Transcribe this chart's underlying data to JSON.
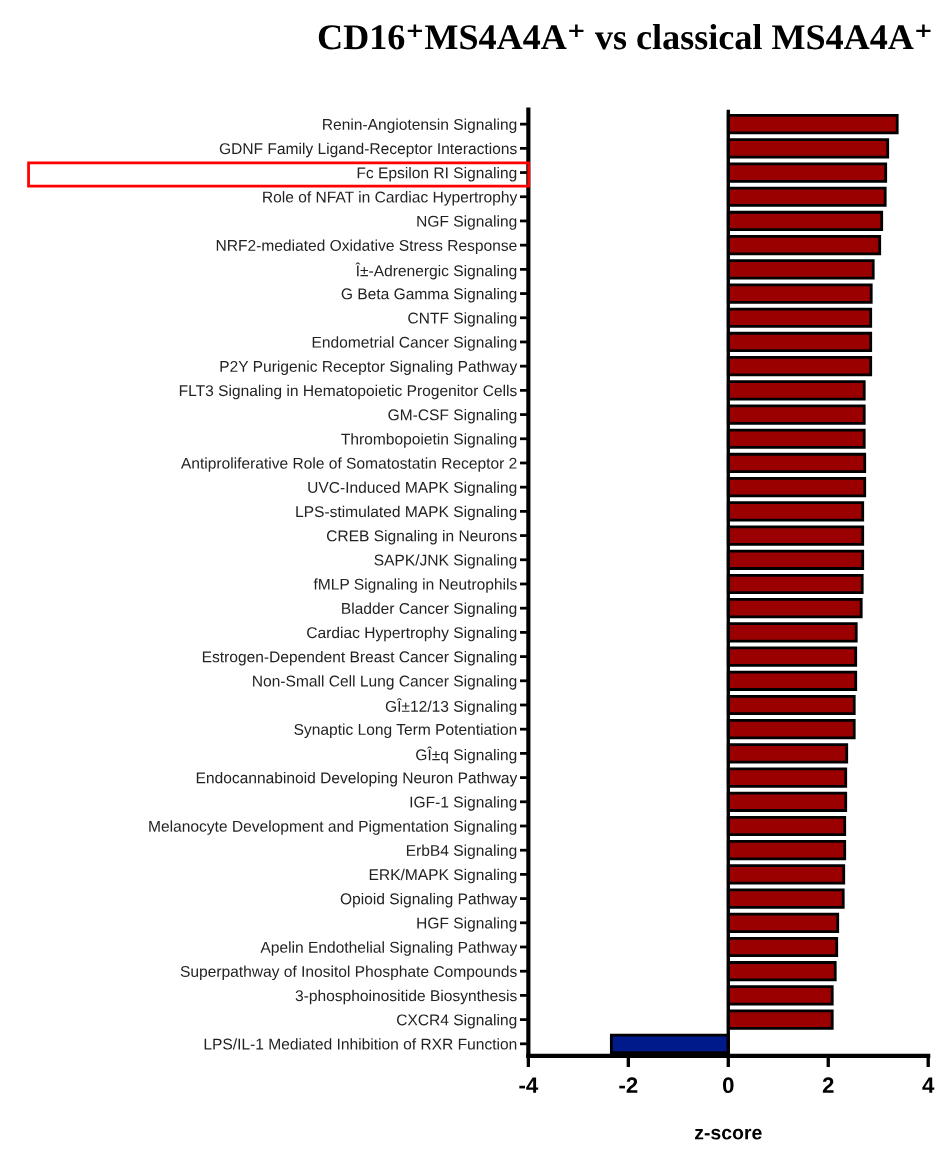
{
  "chart_data": {
    "type": "bar",
    "orientation": "horizontal",
    "title": "CD16⁺MS4A4A⁺ vs classical MS4A4A⁺",
    "xlabel": "z-score",
    "categories": [
      "Renin-Angiotensin Signaling",
      "GDNF Family Ligand-Receptor Interactions",
      "Fc Epsilon RI Signaling",
      "Role of NFAT in Cardiac Hypertrophy",
      "NGF Signaling",
      "NRF2-mediated Oxidative Stress Response",
      "Î±-Adrenergic Signaling",
      "G Beta Gamma Signaling",
      "CNTF Signaling",
      "Endometrial Cancer Signaling",
      "P2Y Purigenic Receptor Signaling Pathway",
      "FLT3 Signaling in Hematopoietic Progenitor Cells",
      "GM-CSF Signaling",
      "Thrombopoietin Signaling",
      "Antiproliferative Role of Somatostatin Receptor 2",
      "UVC-Induced MAPK Signaling",
      "LPS-stimulated MAPK Signaling",
      "CREB Signaling in Neurons",
      "SAPK/JNK Signaling",
      "fMLP Signaling in Neutrophils",
      "Bladder Cancer Signaling",
      "Cardiac Hypertrophy Signaling",
      "Estrogen-Dependent Breast Cancer Signaling",
      "Non-Small Cell Lung Cancer Signaling",
      "GÎ±12/13 Signaling",
      "Synaptic Long Term Potentiation",
      "GÎ±q Signaling",
      "Endocannabinoid Developing Neuron Pathway",
      "IGF-1 Signaling",
      "Melanocyte Development and Pigmentation Signaling",
      "ErbB4 Signaling",
      "ERK/MAPK Signaling",
      "Opioid Signaling Pathway",
      "HGF Signaling",
      "Apelin Endothelial Signaling Pathway",
      "Superpathway of Inositol Phosphate Compounds",
      "3-phosphoinositide Biosynthesis",
      "CXCR4 Signaling",
      "LPS/IL-1 Mediated Inhibition of RXR Function"
    ],
    "values": [
      3.38,
      3.19,
      3.15,
      3.14,
      3.07,
      3.03,
      2.9,
      2.86,
      2.85,
      2.85,
      2.85,
      2.72,
      2.72,
      2.72,
      2.73,
      2.73,
      2.69,
      2.69,
      2.69,
      2.68,
      2.66,
      2.56,
      2.55,
      2.55,
      2.52,
      2.52,
      2.37,
      2.35,
      2.35,
      2.33,
      2.33,
      2.31,
      2.3,
      2.19,
      2.17,
      2.14,
      2.08,
      2.08,
      -2.34
    ],
    "colors": [
      "#9b0000",
      "#9b0000",
      "#9b0000",
      "#9b0000",
      "#9b0000",
      "#9b0000",
      "#9b0000",
      "#9b0000",
      "#9b0000",
      "#9b0000",
      "#9b0000",
      "#9b0000",
      "#9b0000",
      "#9b0000",
      "#9b0000",
      "#9b0000",
      "#9b0000",
      "#9b0000",
      "#9b0000",
      "#9b0000",
      "#9b0000",
      "#9b0000",
      "#9b0000",
      "#9b0000",
      "#9b0000",
      "#9b0000",
      "#9b0000",
      "#9b0000",
      "#9b0000",
      "#9b0000",
      "#9b0000",
      "#9b0000",
      "#9b0000",
      "#9b0000",
      "#9b0000",
      "#9b0000",
      "#9b0000",
      "#9b0000",
      "#001a8c"
    ],
    "xlim": [
      -4,
      4
    ],
    "xticks": [
      -4,
      -2,
      0,
      2,
      4
    ],
    "ref_lines": [
      {
        "axis": "x",
        "value": 0,
        "color": "#000000"
      }
    ],
    "grid": false,
    "legend": false
  }
}
